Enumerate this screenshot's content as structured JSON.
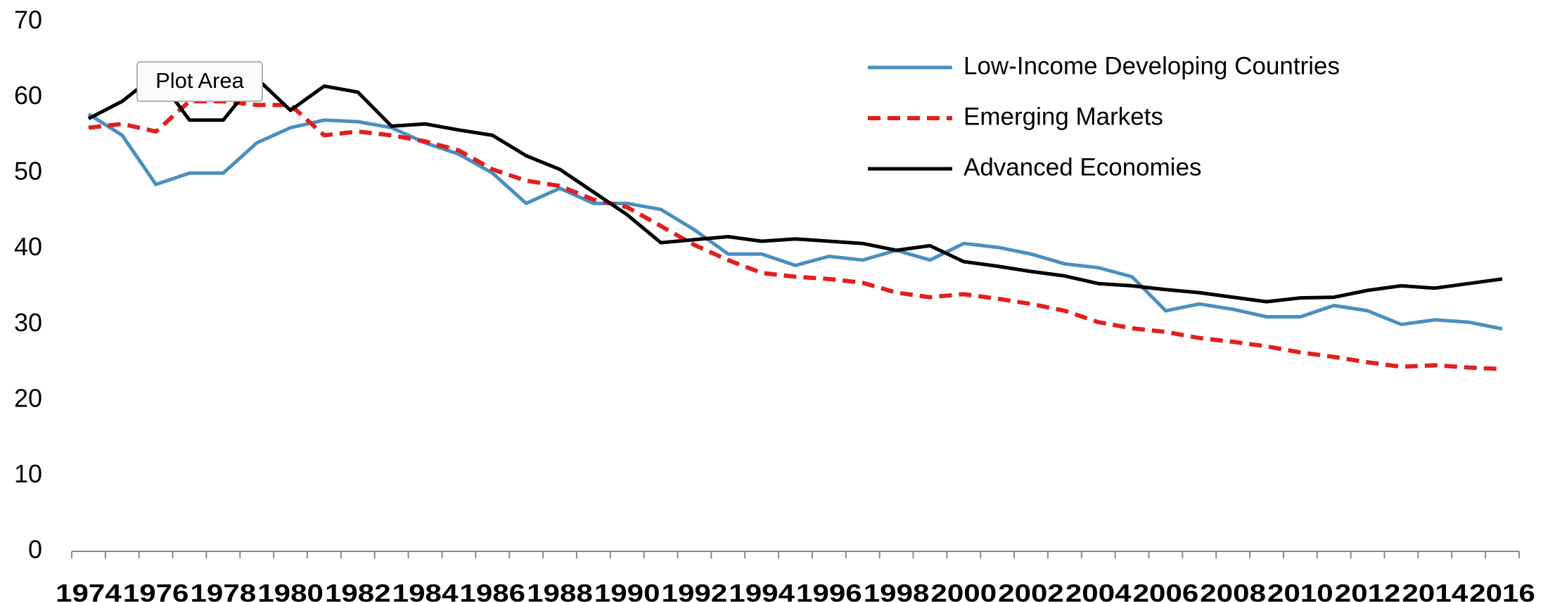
{
  "chart_data": {
    "type": "line",
    "tooltip": "Plot Area",
    "categories": [
      "1974",
      null,
      "1976",
      null,
      "1978",
      null,
      "1980",
      null,
      "1982",
      null,
      "1984",
      null,
      "1986",
      null,
      "1988",
      null,
      "1990",
      null,
      "1992",
      null,
      "1994",
      null,
      "1996",
      null,
      "1998",
      null,
      "2000",
      null,
      "2002",
      null,
      "2004",
      null,
      "2006",
      null,
      "2008",
      null,
      "2010",
      null,
      "2012",
      null,
      "2014",
      null,
      "2016"
    ],
    "series": [
      {
        "name": "Low-Income Developing Countries",
        "color": "#4a8fbf",
        "dash": false,
        "values": [
          57.8,
          55,
          48.5,
          50,
          50,
          54,
          56,
          57,
          56.8,
          56,
          54,
          52.5,
          50,
          46,
          48,
          46,
          46,
          45.2,
          42.5,
          39.3,
          39.3,
          37.8,
          39,
          38.5,
          39.8,
          38.5,
          40.7,
          40.2,
          39.3,
          38,
          37.5,
          36.3,
          31.8,
          32.7,
          32,
          31,
          31,
          32.5,
          31.8,
          30,
          30.6,
          30.3,
          29.4
        ]
      },
      {
        "name": "Emerging Markets",
        "color": "#e0201f",
        "dash": true,
        "values": [
          56,
          56.5,
          55.5,
          59.5,
          59.5,
          59,
          59,
          55,
          55.5,
          55,
          54.2,
          53,
          50.5,
          49,
          48.3,
          46.5,
          45.5,
          43,
          40.5,
          38.5,
          36.8,
          36.3,
          36,
          35.5,
          34.2,
          33.6,
          34,
          33.4,
          32.7,
          31.8,
          30.3,
          29.5,
          29,
          28.2,
          27.7,
          27.1,
          26.3,
          25.7,
          25,
          24.4,
          24.6,
          24.3,
          24.1
        ]
      },
      {
        "name": "Advanced Economies",
        "color": "#000000",
        "dash": false,
        "values": [
          57.2,
          59.5,
          63,
          57,
          57,
          62.5,
          58.3,
          61.5,
          60.7,
          56.2,
          56.5,
          55.7,
          55,
          52.3,
          50.5,
          47.5,
          44.5,
          40.8,
          41.2,
          41.6,
          41,
          41.3,
          41,
          40.7,
          39.8,
          40.4,
          38.3,
          37.7,
          37,
          36.4,
          35.4,
          35.1,
          34.6,
          34.2,
          33.6,
          33,
          33.5,
          33.6,
          34.5,
          35.1,
          34.8,
          35.4,
          36
        ]
      }
    ],
    "ylim": [
      0,
      70
    ],
    "yticks": [
      0,
      10,
      20,
      30,
      40,
      50,
      60,
      70
    ],
    "grid": false,
    "legend": "top-right"
  }
}
